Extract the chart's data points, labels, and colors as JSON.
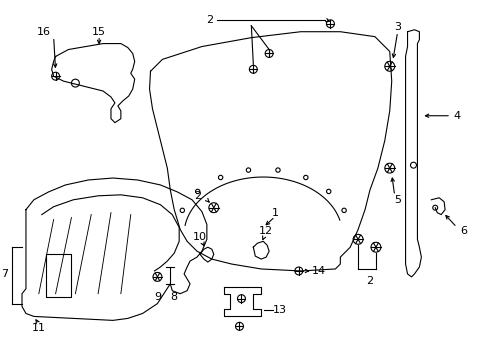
{
  "background_color": "#ffffff",
  "line_color": "#000000",
  "text_color": "#000000",
  "lw": 0.8,
  "screw_r": 4.5,
  "fontsize": 8
}
